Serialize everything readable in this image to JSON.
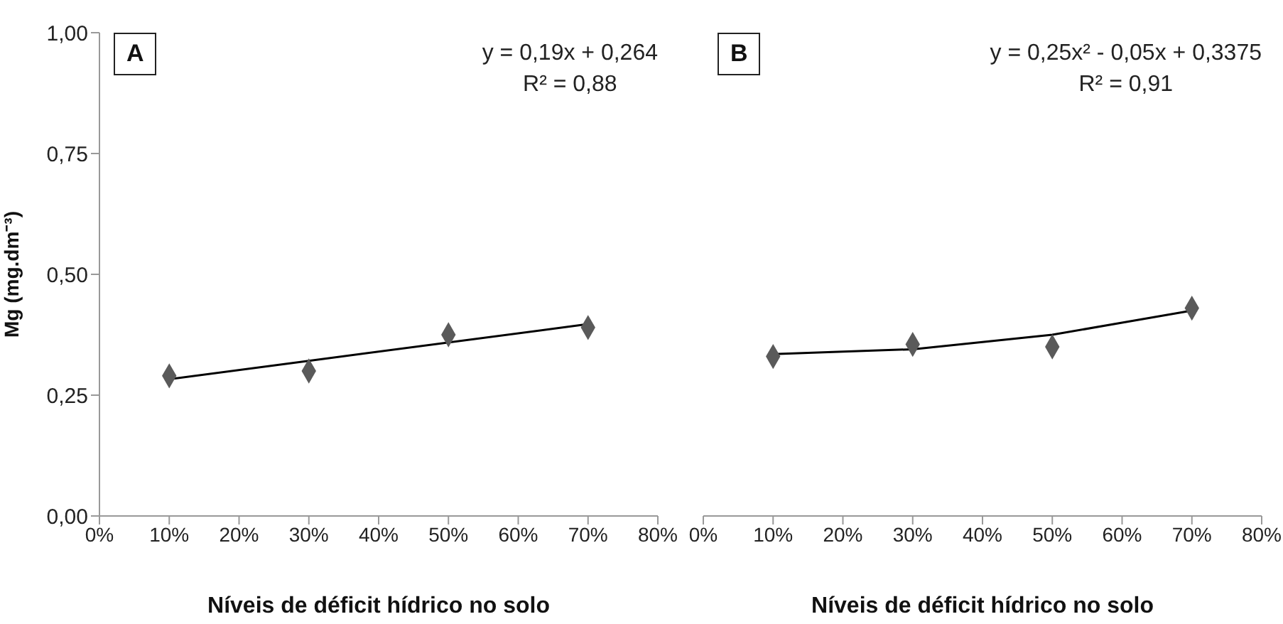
{
  "chart_data": [
    {
      "type": "scatter",
      "ylabel": "Mg (mg.dm⁻³)",
      "xlabel": "Níveis de déficit hídrico no solo",
      "annotations": [
        "A",
        "y = 0,19x + 0,264",
        "R² = 0,88"
      ],
      "xlim": [
        0,
        80
      ],
      "xticks": [
        {
          "value": 0,
          "label": "0%"
        },
        {
          "value": 10,
          "label": "10%"
        },
        {
          "value": 20,
          "label": "20%"
        },
        {
          "value": 30,
          "label": "30%"
        },
        {
          "value": 40,
          "label": "40%"
        },
        {
          "value": 50,
          "label": "50%"
        },
        {
          "value": 60,
          "label": "60%"
        },
        {
          "value": 70,
          "label": "70%"
        },
        {
          "value": 80,
          "label": "80%"
        }
      ],
      "ylim": [
        0,
        1
      ],
      "yticks": [
        {
          "value": 0,
          "label": "0,00"
        },
        {
          "value": 0.25,
          "label": "0,25"
        },
        {
          "value": 0.5,
          "label": "0,50"
        },
        {
          "value": 0.75,
          "label": "0,75"
        },
        {
          "value": 1,
          "label": "1,00"
        }
      ],
      "x": [
        10,
        30,
        50,
        70
      ],
      "marker": "diamond",
      "series": [
        {
          "type": "scatter",
          "color": "#5a5a5a",
          "values": [
            0.29,
            0.3,
            0.375,
            0.39
          ]
        },
        {
          "type": "line",
          "color": "#000000",
          "marker": "none",
          "x": [
            10,
            70
          ],
          "values": [
            0.283,
            0.397
          ]
        }
      ]
    },
    {
      "type": "scatter",
      "xlabel": "Níveis de déficit hídrico no solo",
      "annotations": [
        "B",
        "y = 0,25x² - 0,05x + 0,3375",
        "R² = 0,91"
      ],
      "tick_labels": "x",
      "xlim": [
        0,
        80
      ],
      "xticks": [
        {
          "value": 0,
          "label": "0%"
        },
        {
          "value": 10,
          "label": "10%"
        },
        {
          "value": 20,
          "label": "20%"
        },
        {
          "value": 30,
          "label": "30%"
        },
        {
          "value": 40,
          "label": "40%"
        },
        {
          "value": 50,
          "label": "50%"
        },
        {
          "value": 60,
          "label": "60%"
        },
        {
          "value": 70,
          "label": "70%"
        },
        {
          "value": 80,
          "label": "80%"
        }
      ],
      "ylim": [
        0,
        1
      ],
      "x": [
        10,
        30,
        50,
        70
      ],
      "marker": "diamond",
      "series": [
        {
          "type": "scatter",
          "color": "#5a5a5a",
          "values": [
            0.33,
            0.355,
            0.35,
            0.43
          ]
        },
        {
          "type": "line",
          "color": "#000000",
          "marker": "none",
          "x": [
            10,
            20,
            30,
            40,
            50,
            60,
            70
          ],
          "values": [
            0.335,
            0.34,
            0.345,
            0.36,
            0.375,
            0.4,
            0.425
          ]
        }
      ]
    }
  ]
}
